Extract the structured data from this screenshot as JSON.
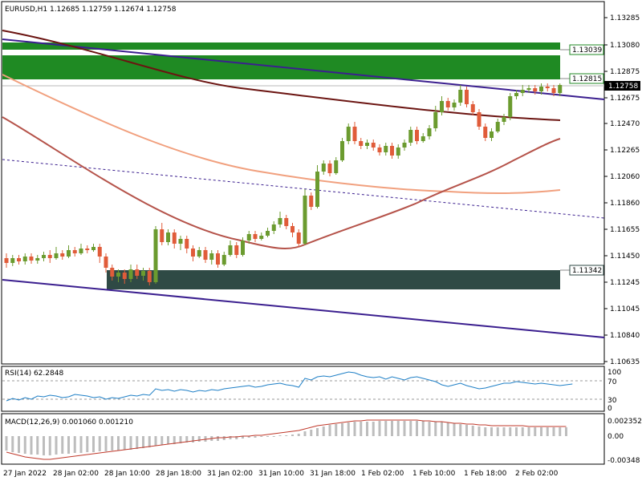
{
  "main_panel": {
    "title": "EURUSD,H1  1.12685 1.12759 1.12674 1.12758",
    "price_axis": [
      "1.13285",
      "1.13080",
      "1.12875",
      "1.12675",
      "1.12470",
      "1.12265",
      "1.12060",
      "1.11860",
      "1.11655",
      "1.11450",
      "1.11245",
      "1.11045",
      "1.10840",
      "1.10635"
    ],
    "current_price": "1.12758",
    "zone_labels": [
      "1.13039",
      "1.12815",
      "1.11342"
    ],
    "colors": {
      "bull": "#6b9b2f",
      "bear": "#e05c3a",
      "supply_zone": "#1f8a23",
      "demand_zone": "#2f4a45",
      "channel": "#3b1f8f",
      "ma_slow": "#6b1411",
      "ma_mid": "#f1a07e",
      "ma_fast": "#b5534a"
    }
  },
  "time_axis": [
    "27 Jan 2022",
    "28 Jan 02:00",
    "28 Jan 10:00",
    "28 Jan 18:00",
    "31 Jan 02:00",
    "31 Jan 10:00",
    "31 Jan 18:00",
    "1 Feb 02:00",
    "1 Feb 10:00",
    "1 Feb 18:00",
    "2 Feb 02:00"
  ],
  "rsi_panel": {
    "title": "RSI(14) 62.2848",
    "axis": [
      "100",
      "70",
      "30",
      "0"
    ]
  },
  "macd_panel": {
    "title": "MACD(12,26,9) 0.001060 0.001210",
    "axis": [
      "0.002352",
      "0.00",
      "-0.00348"
    ]
  }
}
